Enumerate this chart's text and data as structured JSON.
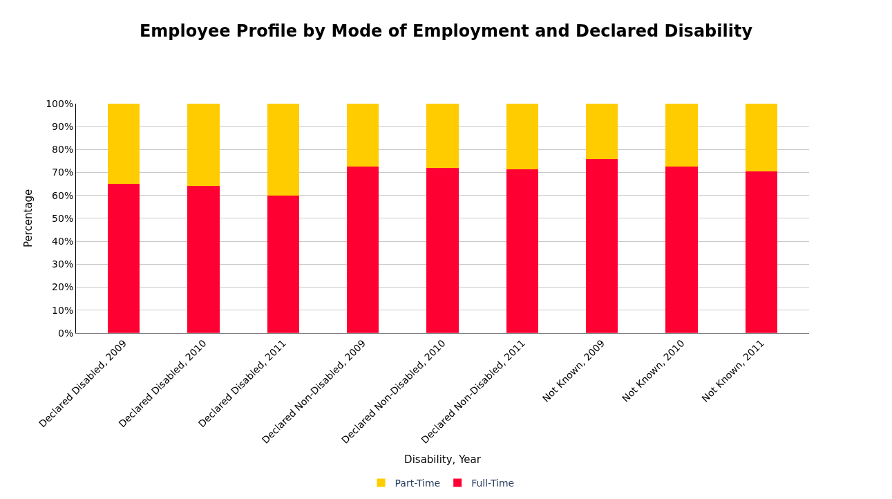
{
  "chart_data": {
    "type": "bar",
    "title": "Employee Profile by Mode of Employment and Declared Disability",
    "xlabel": "Disability, Year",
    "ylabel": "Percentage",
    "categories": [
      "Declared Disabled, 2009",
      "Declared Disabled, 2010",
      "Declared Disabled, 2011",
      "Declared Non-Disabled, 2009",
      "Declared Non-Disabled, 2010",
      "Declared Non-Disabled, 2011",
      "Not Known, 2009",
      "Not Known, 2010",
      "Not Known, 2011"
    ],
    "series": [
      {
        "name": "Full-Time",
        "color": "#ff0033",
        "values": [
          65,
          64,
          60,
          72.5,
          72,
          71.5,
          76,
          72.5,
          70.5
        ]
      },
      {
        "name": "Part-Time",
        "color": "#ffcc00",
        "values": [
          35,
          36,
          40,
          27.5,
          28,
          28.5,
          24,
          27.5,
          29.5
        ]
      }
    ],
    "stacked": true,
    "ylim": [
      0,
      100
    ],
    "yticks": [
      {
        "value": 0,
        "label": "0%"
      },
      {
        "value": 10,
        "label": "10%"
      },
      {
        "value": 20,
        "label": "20%"
      },
      {
        "value": 30,
        "label": "30%"
      },
      {
        "value": 40,
        "label": "40%"
      },
      {
        "value": 50,
        "label": "50%"
      },
      {
        "value": 60,
        "label": "60%"
      },
      {
        "value": 70,
        "label": "70%"
      },
      {
        "value": 80,
        "label": "80%"
      },
      {
        "value": 90,
        "label": "90%"
      },
      {
        "value": 100,
        "label": "100%"
      }
    ],
    "grid": "y",
    "legend": "bottom"
  }
}
